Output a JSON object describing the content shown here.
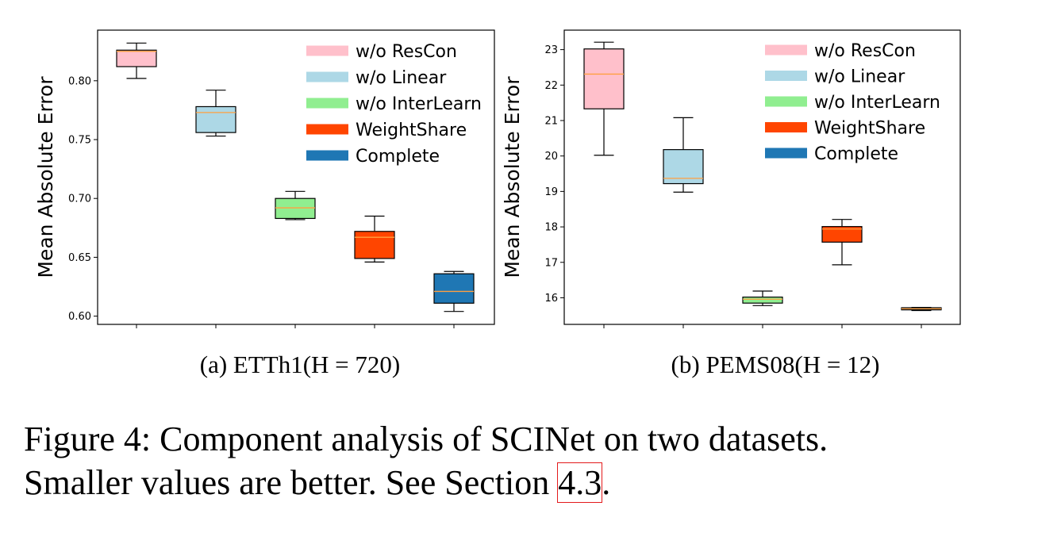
{
  "chart_data": [
    {
      "type": "box",
      "subcaption": "(a) ETTh1(H = 720)",
      "ylabel": "Mean Absolute Error",
      "ylim": [
        0.593,
        0.843
      ],
      "yticks": [
        "0.60",
        "0.65",
        "0.70",
        "0.75",
        "0.80"
      ],
      "grid": false,
      "legend_position": "top-right",
      "series": [
        {
          "name": "w/o ResCon",
          "color": "#ffc0cb",
          "min": 0.802,
          "q1": 0.812,
          "median": 0.825,
          "q3": 0.826,
          "max": 0.832
        },
        {
          "name": "w/o Linear",
          "color": "#add8e6",
          "min": 0.753,
          "q1": 0.756,
          "median": 0.773,
          "q3": 0.778,
          "max": 0.792
        },
        {
          "name": "w/o InterLearn",
          "color": "#90ee90",
          "min": 0.682,
          "q1": 0.683,
          "median": 0.692,
          "q3": 0.7,
          "max": 0.706
        },
        {
          "name": "WeightShare",
          "color": "#ff4500",
          "min": 0.646,
          "q1": 0.649,
          "median": 0.667,
          "q3": 0.672,
          "max": 0.685
        },
        {
          "name": "Complete",
          "color": "#1f77b4",
          "min": 0.604,
          "q1": 0.611,
          "median": 0.621,
          "q3": 0.636,
          "max": 0.638
        }
      ]
    },
    {
      "type": "box",
      "subcaption": "(b) PEMS08(H = 12)",
      "ylabel": "Mean Absolute Error",
      "ylim": [
        15.25,
        23.55
      ],
      "yticks": [
        "16",
        "17",
        "18",
        "19",
        "20",
        "21",
        "22",
        "23"
      ],
      "grid": false,
      "legend_position": "top-right",
      "series": [
        {
          "name": "w/o ResCon",
          "color": "#ffc0cb",
          "min": 20.02,
          "q1": 21.33,
          "median": 22.31,
          "q3": 23.02,
          "max": 23.21
        },
        {
          "name": "w/o Linear",
          "color": "#add8e6",
          "min": 18.98,
          "q1": 19.22,
          "median": 19.37,
          "q3": 20.18,
          "max": 21.08
        },
        {
          "name": "w/o InterLearn",
          "color": "#90ee90",
          "min": 15.78,
          "q1": 15.85,
          "median": 15.96,
          "q3": 16.02,
          "max": 16.19
        },
        {
          "name": "WeightShare",
          "color": "#ff4500",
          "min": 16.93,
          "q1": 17.57,
          "median": 17.94,
          "q3": 18.01,
          "max": 18.21
        },
        {
          "name": "Complete",
          "color": "#1f77b4",
          "min": 15.64,
          "q1": 15.66,
          "median": 15.69,
          "q3": 15.72,
          "max": 15.73
        }
      ]
    }
  ],
  "caption": {
    "line1": "Figure 4: Component analysis of SCINet on two datasets.",
    "line2_prefix": "Smaller values are better. See Section ",
    "section_ref": "4.3",
    "line2_suffix": "."
  }
}
